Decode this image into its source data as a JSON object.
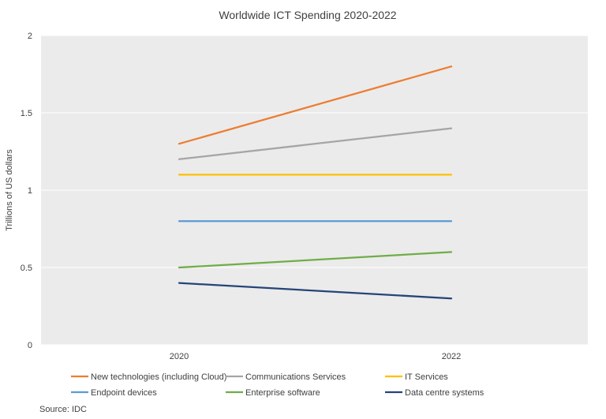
{
  "chart_data": {
    "type": "line",
    "title": "Worldwide ICT Spending 2020-2022",
    "xlabel": "",
    "ylabel": "Trillions of US dollars",
    "categories": [
      "2020",
      "2022"
    ],
    "ylim": [
      0,
      2
    ],
    "yticks": [
      "0",
      "0.5",
      "1",
      "1.5",
      "2"
    ],
    "grid": true,
    "legend_position": "bottom",
    "series": [
      {
        "name": "New technologies (including Cloud)",
        "values": [
          1.3,
          1.8
        ],
        "color": "#ED7D31"
      },
      {
        "name": "Communications Services",
        "values": [
          1.2,
          1.4
        ],
        "color": "#A5A5A5"
      },
      {
        "name": "IT Services",
        "values": [
          1.1,
          1.1
        ],
        "color": "#FFC000"
      },
      {
        "name": "Endpoint devices",
        "values": [
          0.8,
          0.8
        ],
        "color": "#5B9BD5"
      },
      {
        "name": "Enterprise software",
        "values": [
          0.5,
          0.6
        ],
        "color": "#70AD47"
      },
      {
        "name": "Data centre systems",
        "values": [
          0.4,
          0.3
        ],
        "color": "#264478"
      }
    ]
  },
  "source": "Source: IDC"
}
